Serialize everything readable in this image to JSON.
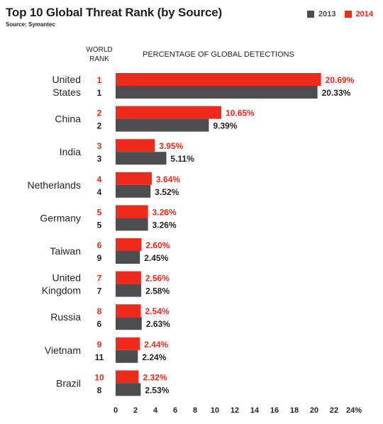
{
  "title": "Top 10 Global Threat Rank (by Source)",
  "source": "Source: Symantec",
  "legend": [
    {
      "label": "2013",
      "color": "#4d4d4f"
    },
    {
      "label": "2014",
      "color": "#ee2a1b"
    }
  ],
  "header": {
    "rank_line1": "WORLD",
    "rank_line2": "RANK",
    "pct": "PERCENTAGE OF GLOBAL DETECTIONS"
  },
  "chart_data": {
    "type": "bar",
    "orientation": "horizontal",
    "title": "Top 10 Global Threat Rank (by Source)",
    "xlabel": "PERCENTAGE OF GLOBAL DETECTIONS",
    "xlim": [
      0,
      24
    ],
    "xticks": [
      "0",
      "2",
      "4",
      "6",
      "8",
      "10",
      "12",
      "14",
      "16",
      "18",
      "20",
      "22",
      "24%"
    ],
    "grid": false,
    "legend_position": "top-right",
    "categories": [
      [
        "United",
        "States"
      ],
      [
        "China"
      ],
      [
        "India"
      ],
      [
        "Netherlands"
      ],
      [
        "Germany"
      ],
      [
        "Taiwan"
      ],
      [
        "United",
        "Kingdom"
      ],
      [
        "Russia"
      ],
      [
        "Vietnam"
      ],
      [
        "Brazil"
      ]
    ],
    "series": [
      {
        "name": "2014",
        "color": "#ee2a1b",
        "values": [
          20.69,
          10.65,
          3.95,
          3.64,
          3.26,
          2.6,
          2.56,
          2.54,
          2.44,
          2.32
        ],
        "labels": [
          "20.69%",
          "10.65%",
          "3.95%",
          "3.64%",
          "3.26%",
          "2.60%",
          "2.56%",
          "2.54%",
          "2.44%",
          "2.32%"
        ],
        "ranks": [
          "1",
          "2",
          "3",
          "4",
          "5",
          "6",
          "7",
          "8",
          "9",
          "10"
        ]
      },
      {
        "name": "2013",
        "color": "#4d4d4f",
        "values": [
          20.33,
          9.39,
          5.11,
          3.52,
          3.26,
          2.45,
          2.58,
          2.63,
          2.24,
          2.53
        ],
        "labels": [
          "20.33%",
          "9.39%",
          "5.11%",
          "3.52%",
          "3.26%",
          "2.45%",
          "2.58%",
          "2.63%",
          "2.24%",
          "2.53%"
        ],
        "ranks": [
          "1",
          "2",
          "3",
          "4",
          "5",
          "9",
          "7",
          "6",
          "11",
          "8"
        ]
      }
    ]
  }
}
